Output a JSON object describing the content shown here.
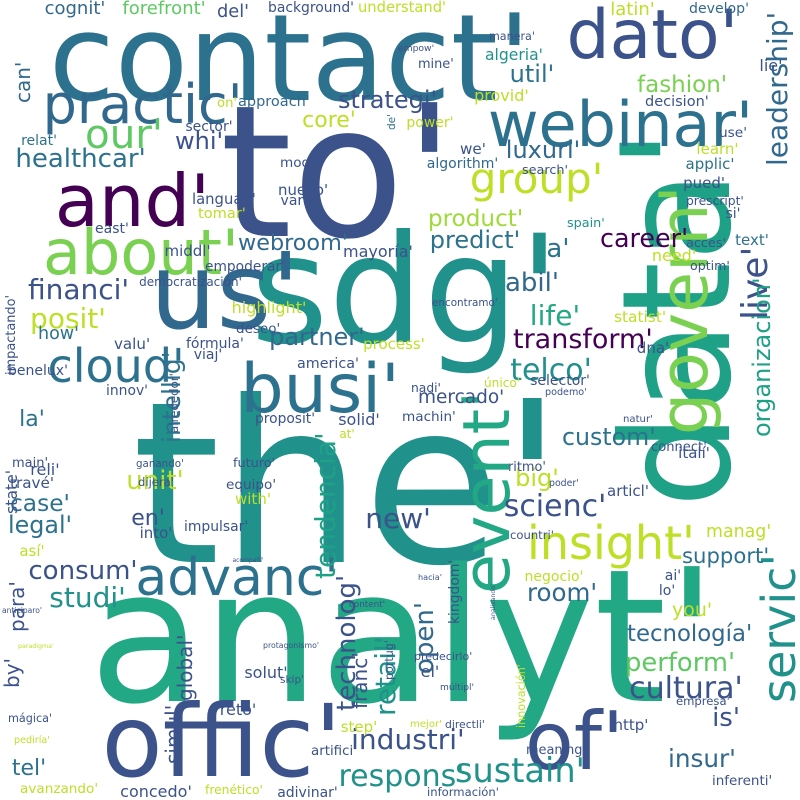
{
  "palette": [
    "#440154",
    "#46327e",
    "#365c8d",
    "#277f8e",
    "#1fa187",
    "#4ac16d",
    "#a0da39",
    "#fde725"
  ],
  "words": [
    {
      "text": "the'",
      "color": "#21918c"
    },
    {
      "text": "analyt'",
      "color": "#22a884"
    },
    {
      "text": "data'",
      "color": "#1fa187"
    },
    {
      "text": "to'",
      "color": "#3b528b"
    },
    {
      "text": "sdg'",
      "color": "#21918c"
    },
    {
      "text": "contact'",
      "color": "#2c728e"
    },
    {
      "text": "offic'",
      "color": "#3b528b"
    },
    {
      "text": "about'",
      "color": "#7ad151"
    },
    {
      "text": "and'",
      "color": "#440154"
    },
    {
      "text": "dato'",
      "color": "#3b528b"
    },
    {
      "text": "webinar'",
      "color": "#2c728e"
    },
    {
      "text": "us'",
      "color": "#31688e"
    },
    {
      "text": "govern'",
      "color": "#7ad151"
    },
    {
      "text": "event'",
      "color": "#22a884"
    },
    {
      "text": "busi'",
      "color": "#2c728e"
    },
    {
      "text": "servic'",
      "color": "#21918c"
    },
    {
      "text": "of'",
      "color": "#3b528b"
    },
    {
      "text": "advanc'",
      "color": "#2c728e"
    },
    {
      "text": "insight'",
      "color": "#bddf26"
    },
    {
      "text": "practic'",
      "color": "#31688e"
    },
    {
      "text": "cloud'",
      "color": "#2c728e"
    },
    {
      "text": "group'",
      "color": "#bddf26"
    },
    {
      "text": "our'",
      "color": "#5ec962"
    },
    {
      "text": "respons'",
      "color": "#21918c"
    },
    {
      "text": "sustain'",
      "color": "#21918c"
    },
    {
      "text": "industri'",
      "color": "#3b528b"
    },
    {
      "text": "fashion'",
      "color": "#7ad151"
    },
    {
      "text": "strategi'",
      "color": "#3b528b"
    },
    {
      "text": "room'",
      "color": "#31688e"
    },
    {
      "text": "studi'",
      "color": "#21918c"
    },
    {
      "text": "consum'",
      "color": "#3b528b"
    },
    {
      "text": "support'",
      "color": "#2c728e"
    },
    {
      "text": "insur'",
      "color": "#31688e"
    },
    {
      "text": "cultura'",
      "color": "#3b528b"
    },
    {
      "text": "perform'",
      "color": "#5ec962"
    },
    {
      "text": "tecnología'",
      "color": "#31688e"
    },
    {
      "text": "transform'",
      "color": "#440154"
    },
    {
      "text": "partner'",
      "color": "#31688e"
    },
    {
      "text": "telco'",
      "color": "#21918c"
    },
    {
      "text": "healthcar'",
      "color": "#2c728e"
    },
    {
      "text": "life'",
      "color": "#22a884"
    },
    {
      "text": "abil'",
      "color": "#31688e"
    },
    {
      "text": "webroom'",
      "color": "#31688e"
    },
    {
      "text": "financi'",
      "color": "#3b528b"
    },
    {
      "text": "posit'",
      "color": "#bddf26"
    },
    {
      "text": "predict'",
      "color": "#2c728e"
    },
    {
      "text": "product'",
      "color": "#a0da39"
    },
    {
      "text": "career'",
      "color": "#440154"
    },
    {
      "text": "luxuri'",
      "color": "#31688e"
    },
    {
      "text": "util'",
      "color": "#2c728e"
    },
    {
      "text": "core'",
      "color": "#bddf26"
    },
    {
      "text": "whi'",
      "color": "#3b528b"
    },
    {
      "text": "scienc'",
      "color": "#3b528b"
    },
    {
      "text": "custom'",
      "color": "#2c728e"
    },
    {
      "text": "big'",
      "color": "#bddf26"
    },
    {
      "text": "new'",
      "color": "#3b528b"
    },
    {
      "text": "case'",
      "color": "#2c728e"
    },
    {
      "text": "legal'",
      "color": "#2c728e"
    },
    {
      "text": "unit'",
      "color": "#bddf26"
    },
    {
      "text": "en'",
      "color": "#3b528b"
    },
    {
      "text": "la'",
      "color": "#2c728e"
    },
    {
      "text": "mercado'",
      "color": "#3b528b"
    },
    {
      "text": "is'",
      "color": "#3b528b"
    },
    {
      "text": "you'",
      "color": "#bddf26"
    },
    {
      "text": "a'",
      "color": "#2c728e"
    },
    {
      "text": "manag'",
      "color": "#bddf26"
    },
    {
      "text": "tendencia'",
      "color": "#1fa187"
    },
    {
      "text": "technolog'",
      "color": "#3b528b"
    },
    {
      "text": "open'",
      "color": "#31688e"
    },
    {
      "text": "retail'",
      "color": "#21918c"
    },
    {
      "text": "intellig'",
      "color": "#2c728e"
    },
    {
      "text": "leadership'",
      "color": "#31688e"
    },
    {
      "text": "live'",
      "color": "#3b528b"
    },
    {
      "text": "organizacion'",
      "color": "#1fa187"
    },
    {
      "text": "we'",
      "color": "#3b528b"
    },
    {
      "text": "how'",
      "color": "#2c728e"
    },
    {
      "text": "main'",
      "color": "#3b528b"
    },
    {
      "text": "tel'",
      "color": "#2c728e"
    },
    {
      "text": "cognit'",
      "color": "#31688e"
    },
    {
      "text": "forefront'",
      "color": "#5ec962"
    },
    {
      "text": "del'",
      "color": "#3b528b"
    },
    {
      "text": "background'",
      "color": "#3b528b"
    },
    {
      "text": "understand'",
      "color": "#bddf26"
    },
    {
      "text": "latin'",
      "color": "#bddf26"
    },
    {
      "text": "develop'",
      "color": "#31688e"
    },
    {
      "text": "lie'",
      "color": "#3b528b"
    },
    {
      "text": "can'",
      "color": "#31688e"
    },
    {
      "text": "empow'",
      "color": "#3b528b"
    },
    {
      "text": "mine'",
      "color": "#3b528b"
    },
    {
      "text": "manera'",
      "color": "#3b528b"
    },
    {
      "text": "algeria'",
      "color": "#21918c"
    },
    {
      "text": "on'",
      "color": "#bddf26"
    },
    {
      "text": "approach'",
      "color": "#31688e"
    },
    {
      "text": "provid'",
      "color": "#bddf26"
    },
    {
      "text": "decision'",
      "color": "#3b528b"
    },
    {
      "text": "sector'",
      "color": "#3b528b"
    },
    {
      "text": "power'",
      "color": "#bddf26"
    },
    {
      "text": "use'",
      "color": "#3b528b"
    },
    {
      "text": "relat'",
      "color": "#2c728e"
    },
    {
      "text": "de'",
      "color": "#2c728e"
    },
    {
      "text": "learn'",
      "color": "#bddf26"
    },
    {
      "text": "model'",
      "color": "#3b528b"
    },
    {
      "text": "algorithm'",
      "color": "#31688e"
    },
    {
      "text": "applic'",
      "color": "#2c728e"
    },
    {
      "text": "search'",
      "color": "#3b528b"
    },
    {
      "text": "pued'",
      "color": "#3b528b"
    },
    {
      "text": "nuevo'",
      "color": "#3b528b"
    },
    {
      "text": "languag'",
      "color": "#3b528b"
    },
    {
      "text": "prescript'",
      "color": "#3b528b"
    },
    {
      "text": "varia'",
      "color": "#3b528b"
    },
    {
      "text": "tomar'",
      "color": "#bddf26"
    },
    {
      "text": "si'",
      "color": "#3b528b"
    },
    {
      "text": "east'",
      "color": "#3b528b"
    },
    {
      "text": "spain'",
      "color": "#21918c"
    },
    {
      "text": "text'",
      "color": "#2c728e"
    },
    {
      "text": "acces'",
      "color": "#3b528b"
    },
    {
      "text": "middl'",
      "color": "#3b528b"
    },
    {
      "text": "mayoría'",
      "color": "#3b528b"
    },
    {
      "text": "need'",
      "color": "#bddf26"
    },
    {
      "text": "empoderar'",
      "color": "#3b528b"
    },
    {
      "text": "optim'",
      "color": "#3b528b"
    },
    {
      "text": "democratización'",
      "color": "#3b528b"
    },
    {
      "text": "encontramo'",
      "color": "#3b528b"
    },
    {
      "text": "highlight'",
      "color": "#bddf26"
    },
    {
      "text": "statist'",
      "color": "#bddf26"
    },
    {
      "text": "impactando'",
      "color": "#3b528b"
    },
    {
      "text": "deseo'",
      "color": "#3b528b"
    },
    {
      "text": "valu'",
      "color": "#3b528b"
    },
    {
      "text": "fórmula'",
      "color": "#3b528b"
    },
    {
      "text": "viaj'",
      "color": "#3b528b"
    },
    {
      "text": "process'",
      "color": "#bddf26"
    },
    {
      "text": "dna'",
      "color": "#3b528b"
    },
    {
      "text": "america'",
      "color": "#3b528b"
    },
    {
      "text": "nadi'",
      "color": "#3b528b"
    },
    {
      "text": "único'",
      "color": "#bddf26"
    },
    {
      "text": "selector'",
      "color": "#3b528b"
    },
    {
      "text": "benelux'",
      "color": "#3b528b"
    },
    {
      "text": "innov'",
      "color": "#3b528b"
    },
    {
      "text": "alrededor'",
      "color": "#3b528b"
    },
    {
      "text": "podemo'",
      "color": "#3b528b"
    },
    {
      "text": "proposit'",
      "color": "#3b528b"
    },
    {
      "text": "solid'",
      "color": "#3b528b"
    },
    {
      "text": "natur'",
      "color": "#3b528b"
    },
    {
      "text": "reli'",
      "color": "#3b528b"
    },
    {
      "text": "at'",
      "color": "#bddf26"
    },
    {
      "text": "machin'",
      "color": "#3b528b"
    },
    {
      "text": "italí'",
      "color": "#3b528b"
    },
    {
      "text": "state'",
      "color": "#3b528b"
    },
    {
      "text": "ganando'",
      "color": "#3b528b"
    },
    {
      "text": "connect'",
      "color": "#3b528b"
    },
    {
      "text": "ritmo'",
      "color": "#3b528b"
    },
    {
      "text": "equipo'",
      "color": "#3b528b"
    },
    {
      "text": "travé'",
      "color": "#3b528b"
    },
    {
      "text": "futuro'",
      "color": "#3b528b"
    },
    {
      "text": "dijera'",
      "color": "#3b528b"
    },
    {
      "text": "with'",
      "color": "#bddf26"
    },
    {
      "text": "poder'",
      "color": "#3b528b"
    },
    {
      "text": "articl'",
      "color": "#3b528b"
    },
    {
      "text": "impulsar'",
      "color": "#3b528b"
    },
    {
      "text": "into'",
      "color": "#3b528b"
    },
    {
      "text": "countri'",
      "color": "#3b528b"
    },
    {
      "text": "así'",
      "color": "#bddf26"
    },
    {
      "text": "acompañí'",
      "color": "#3b528b"
    },
    {
      "text": "kingdom'",
      "color": "#3b528b"
    },
    {
      "text": "negocio'",
      "color": "#bddf26"
    },
    {
      "text": "ai'",
      "color": "#3b528b"
    },
    {
      "text": "hacia'",
      "color": "#3b528b"
    },
    {
      "text": "anticiparo'",
      "color": "#3b528b"
    },
    {
      "text": "para'",
      "color": "#3b528b"
    },
    {
      "text": "content'",
      "color": "#3b528b"
    },
    {
      "text": "lo'",
      "color": "#3b528b"
    },
    {
      "text": "analizando'",
      "color": "#3b528b"
    },
    {
      "text": "by'",
      "color": "#3b528b"
    },
    {
      "text": "paradigma'",
      "color": "#bddf26"
    },
    {
      "text": "global'",
      "color": "#3b528b"
    },
    {
      "text": "protagonismo'",
      "color": "#3b528b"
    },
    {
      "text": "franc'",
      "color": "#3b528b"
    },
    {
      "text": "portug'",
      "color": "#3b528b"
    },
    {
      "text": "predecirlo'",
      "color": "#3b528b"
    },
    {
      "text": "solut'",
      "color": "#3b528b"
    },
    {
      "text": "el'",
      "color": "#3b528b"
    },
    {
      "text": "skip'",
      "color": "#3b528b"
    },
    {
      "text": "múltipl'",
      "color": "#3b528b"
    },
    {
      "text": "innovación'",
      "color": "#bddf26"
    },
    {
      "text": "empresa'",
      "color": "#3b528b"
    },
    {
      "text": "simul'",
      "color": "#3b528b"
    },
    {
      "text": "mágica'",
      "color": "#3b528b"
    },
    {
      "text": "reto'",
      "color": "#3b528b"
    },
    {
      "text": "step'",
      "color": "#bddf26"
    },
    {
      "text": "mejor'",
      "color": "#bddf26"
    },
    {
      "text": "directli'",
      "color": "#3b528b"
    },
    {
      "text": "http'",
      "color": "#3b528b"
    },
    {
      "text": "pediría'",
      "color": "#bddf26"
    },
    {
      "text": "artifici'",
      "color": "#3b528b"
    },
    {
      "text": "meaning'",
      "color": "#3b528b"
    },
    {
      "text": "inferenti'",
      "color": "#3b528b"
    },
    {
      "text": "avanzando'",
      "color": "#bddf26"
    },
    {
      "text": "concedo'",
      "color": "#3b528b"
    },
    {
      "text": "frenético'",
      "color": "#bddf26"
    },
    {
      "text": "adivinar'",
      "color": "#3b528b"
    },
    {
      "text": "información'",
      "color": "#3b528b"
    }
  ]
}
